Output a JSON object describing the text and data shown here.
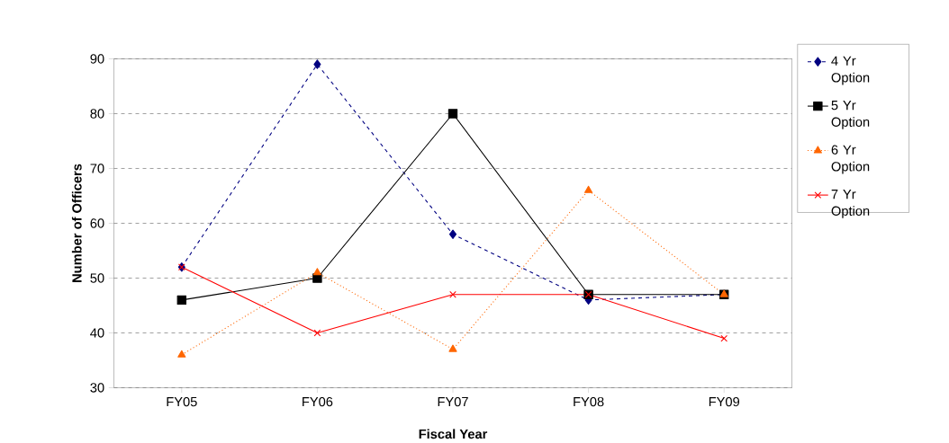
{
  "chart_data": {
    "type": "line",
    "xlabel": "Fiscal Year",
    "ylabel": "Number of Officers",
    "categories": [
      "FY05",
      "FY06",
      "FY07",
      "FY08",
      "FY09"
    ],
    "series": [
      {
        "name": "4 Yr Option",
        "color": "#000080",
        "marker": "diamond",
        "line_style": "dashed",
        "values": [
          52,
          89,
          58,
          46,
          47
        ]
      },
      {
        "name": "5 Yr Option",
        "color": "#000000",
        "marker": "square",
        "line_style": "solid",
        "values": [
          46,
          50,
          80,
          47,
          47
        ]
      },
      {
        "name": "6 Yr Option",
        "color": "#ff6600",
        "marker": "triangle",
        "line_style": "dotted",
        "values": [
          36,
          51,
          37,
          66,
          47
        ]
      },
      {
        "name": "7 Yr Option",
        "color": "#ff0000",
        "marker": "cross",
        "line_style": "solid",
        "values": [
          52,
          40,
          47,
          47,
          39
        ]
      }
    ],
    "ylim": [
      30,
      90
    ],
    "yticks": [
      30,
      40,
      50,
      60,
      70,
      80,
      90
    ],
    "grid": "y",
    "legend": "right"
  }
}
